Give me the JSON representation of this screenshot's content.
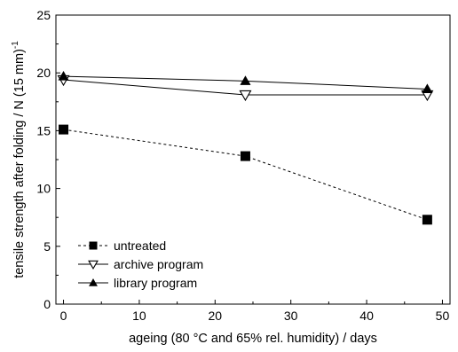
{
  "chart_data": {
    "type": "line",
    "title": "",
    "xlabel": "ageing (80 °C and 65% rel. humidity) / days",
    "ylabel": "tensile strength after folding / N (15 mm)",
    "ylabel_superscript": "-1",
    "xlim": [
      -1,
      51
    ],
    "ylim": [
      0,
      25
    ],
    "xticks": [
      0,
      10,
      20,
      30,
      40,
      50
    ],
    "yticks": [
      0,
      5,
      10,
      15,
      20,
      25
    ],
    "grid": false,
    "legend_position": "bottom-left",
    "x": [
      0,
      24,
      48
    ],
    "series": [
      {
        "name": "untreated",
        "values": [
          15.1,
          12.8,
          7.3
        ],
        "marker": "square-filled",
        "line": "dashed",
        "color": "#000000"
      },
      {
        "name": "archive program",
        "values": [
          19.4,
          18.1,
          18.1
        ],
        "marker": "triangle-down-open",
        "line": "solid",
        "color": "#000000"
      },
      {
        "name": "library program",
        "values": [
          19.7,
          19.3,
          18.6
        ],
        "marker": "triangle-up-filled",
        "line": "solid",
        "color": "#000000"
      }
    ]
  }
}
